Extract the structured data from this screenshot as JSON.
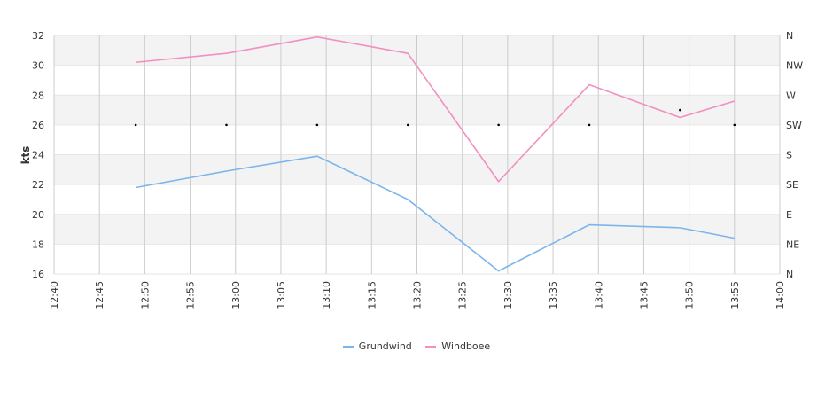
{
  "chart_data": {
    "type": "line",
    "title": "",
    "xlabel": "",
    "ylabel": "kts",
    "ylim": [
      16,
      32
    ],
    "xlim": [
      "12:40",
      "14:00"
    ],
    "grid": true,
    "legend_position": "bottom",
    "y_ticks": [
      "16",
      "18",
      "20",
      "22",
      "24",
      "26",
      "28",
      "30",
      "32"
    ],
    "x_ticks": [
      "12:40",
      "12:45",
      "12:50",
      "12:55",
      "13:00",
      "13:05",
      "13:10",
      "13:15",
      "13:20",
      "13:25",
      "13:30",
      "13:35",
      "13:40",
      "13:45",
      "13:50",
      "13:55",
      "14:00"
    ],
    "y2_ticks": [
      "N",
      "NE",
      "E",
      "SE",
      "S",
      "SW",
      "W",
      "NW",
      "N"
    ],
    "x": [
      "12:49",
      "12:59",
      "13:09",
      "13:19",
      "13:29",
      "13:39",
      "13:49",
      "13:55"
    ],
    "series": [
      {
        "name": "Grundwind",
        "color": "#7cb5ec",
        "values": [
          21.8,
          22.9,
          23.9,
          21.0,
          16.2,
          19.3,
          19.1,
          18.4
        ]
      },
      {
        "name": "Windboee",
        "color": "#f28fc0",
        "values": [
          30.2,
          30.8,
          31.9,
          30.8,
          22.2,
          28.7,
          26.5,
          27.6
        ]
      }
    ],
    "direction": {
      "x": [
        "12:49",
        "12:59",
        "13:09",
        "13:19",
        "13:29",
        "13:39",
        "13:49",
        "13:55"
      ],
      "values": [
        "SW",
        "SW",
        "SW",
        "SW",
        "SW",
        "SW",
        "WSW",
        "SW"
      ]
    }
  }
}
